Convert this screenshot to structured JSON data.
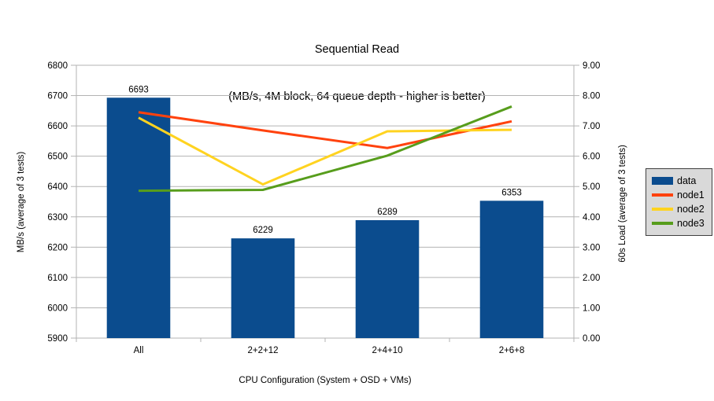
{
  "chart_data": {
    "type": "bar",
    "subtype": "combo-bar-line-dual-axis",
    "title": "Sequential Read",
    "subtitle": "(MB/s, 4M block, 64 queue depth - higher is better)",
    "categories": [
      "All",
      "2+2+12",
      "2+4+10",
      "2+6+8"
    ],
    "x_axis": {
      "title": "CPU Configuration (System + OSD + VMs)"
    },
    "left_axis": {
      "title": "MB/s (average of 3 tests)",
      "min": 5900,
      "max": 6800,
      "step": 100,
      "format": "int"
    },
    "right_axis": {
      "title": "60s Load (average of 3 tests)",
      "min": 0,
      "max": 9,
      "step": 1,
      "format": "2dp"
    },
    "bar_series": {
      "name": "data",
      "axis": "left",
      "color": "#0b4c8e",
      "values": [
        6693,
        6229,
        6289,
        6353
      ]
    },
    "line_series": [
      {
        "name": "node1",
        "axis": "right",
        "color": "#ff420e",
        "values": [
          7.45,
          6.85,
          6.27,
          7.15
        ]
      },
      {
        "name": "node2",
        "axis": "right",
        "color": "#ffd320",
        "values": [
          7.27,
          5.07,
          6.82,
          6.87
        ]
      },
      {
        "name": "node3",
        "axis": "right",
        "color": "#579d1c",
        "values": [
          4.86,
          4.89,
          6.02,
          7.64
        ]
      }
    ],
    "legend": {
      "position": "right",
      "background": "#d9d9d9",
      "entries": [
        "data",
        "node1",
        "node2",
        "node3"
      ]
    },
    "grid": "horizontal",
    "grid_color": "#b3b3b3"
  }
}
